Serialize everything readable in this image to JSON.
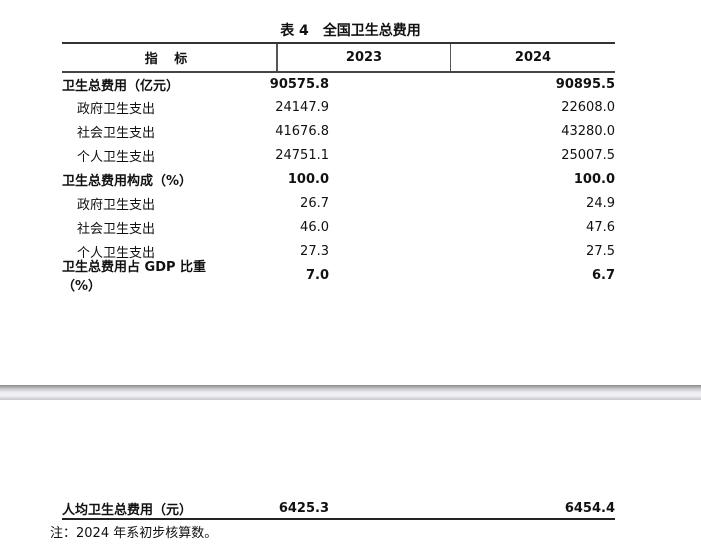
{
  "table": {
    "title_number": "表 4",
    "title": "全国卫生总费用",
    "headers": [
      "指 标",
      "2023",
      "2024"
    ],
    "rows": [
      {
        "label": "卫生总费用（亿元）",
        "v2023": "90575.8",
        "v2024": "90895.5",
        "bold": true
      },
      {
        "label": "政府卫生支出",
        "v2023": "24147.9",
        "v2024": "22608.0"
      },
      {
        "label": "社会卫生支出",
        "v2023": "41676.8",
        "v2024": "43280.0"
      },
      {
        "label": "个人卫生支出",
        "v2023": "24751.1",
        "v2024": "25007.5"
      },
      {
        "label": "卫生总费用构成（%）",
        "v2023": "100.0",
        "v2024": "100.0",
        "bold": true
      },
      {
        "label": "政府卫生支出",
        "v2023": "26.7",
        "v2024": "24.9"
      },
      {
        "label": "社会卫生支出",
        "v2023": "46.0",
        "v2024": "47.6"
      },
      {
        "label": "个人卫生支出",
        "v2023": "27.3",
        "v2024": "27.5"
      },
      {
        "label": "卫生总费用占 GDP 比重（%）",
        "v2023": "7.0",
        "v2024": "6.7",
        "bold": true
      }
    ],
    "last_row": {
      "label": "人均卫生总费用（元）",
      "v2023": "6425.3",
      "v2024": "6454.4"
    },
    "note": "注：2024 年系初步核算数。"
  }
}
